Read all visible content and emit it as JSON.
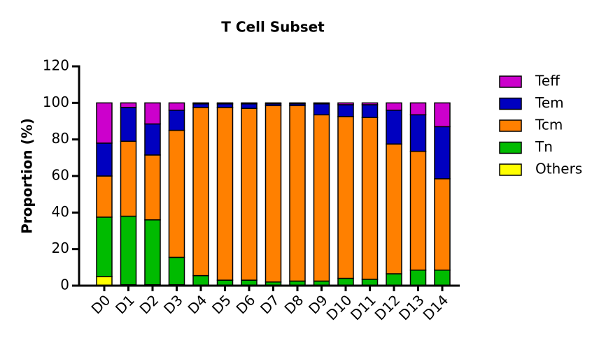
{
  "chart_data": {
    "type": "stacked_bar",
    "title": "T Cell Subset",
    "ylabel": "Proportion (%)",
    "categories": [
      "D0",
      "D1",
      "D2",
      "D3",
      "D4",
      "D5",
      "D6",
      "D7",
      "D8",
      "D9",
      "D10",
      "D11",
      "D12",
      "D13",
      "D14"
    ],
    "series": [
      {
        "name": "Others",
        "color": "#ffff00",
        "values": [
          5,
          0.5,
          0.5,
          0.5,
          0.3,
          0.3,
          0.3,
          0.2,
          0.2,
          0.2,
          0.2,
          0.2,
          0.2,
          0.2,
          0.2
        ]
      },
      {
        "name": "Tn",
        "color": "#00bb00",
        "values": [
          32.5,
          37.5,
          35.5,
          15,
          5.2,
          2.7,
          2.7,
          1.8,
          2.3,
          2.3,
          3.8,
          3.3,
          6.3,
          8.3,
          8.3
        ]
      },
      {
        "name": "Tcm",
        "color": "#ff8000",
        "values": [
          22.5,
          41,
          35.5,
          69.5,
          92,
          94.5,
          94,
          96.5,
          96,
          91,
          88.5,
          88.5,
          71,
          65,
          50
        ]
      },
      {
        "name": "Tem",
        "color": "#0000c0",
        "values": [
          18,
          18.5,
          17,
          11,
          2,
          2,
          2.5,
          1,
          1,
          6,
          6.5,
          7,
          18.5,
          20,
          28.5
        ]
      },
      {
        "name": "Teff",
        "color": "#cc00cc",
        "values": [
          22,
          2.5,
          11.5,
          4,
          0.5,
          0.5,
          0.5,
          0.5,
          0.5,
          0.5,
          1,
          1,
          4,
          6.5,
          13
        ]
      }
    ],
    "ylim": [
      0,
      120
    ],
    "yticks": [
      0,
      20,
      40,
      60,
      80,
      100,
      120
    ],
    "legend": "right"
  }
}
